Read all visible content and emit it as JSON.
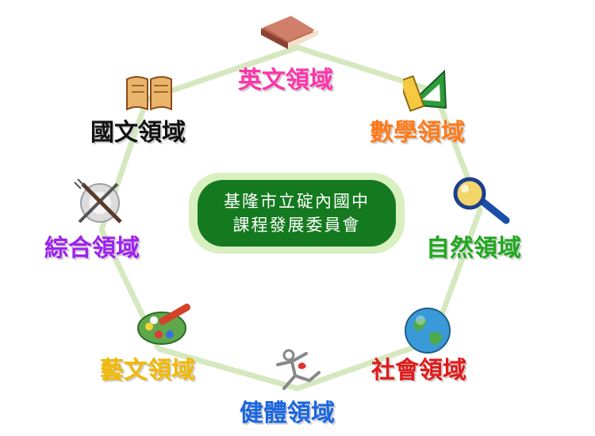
{
  "center": {
    "line1": "基隆市立碇內國中",
    "line2": "課程發展委員會"
  },
  "domains": [
    {
      "label": "英文領域",
      "color": "#ff33aa",
      "icon": "book-icon"
    },
    {
      "label": "數學領域",
      "color": "#ff7a1a",
      "icon": "ruler-triangle-icon"
    },
    {
      "label": "自然領域",
      "color": "#1ea81e",
      "icon": "magnifier-icon"
    },
    {
      "label": "社會領域",
      "color": "#e01a1a",
      "icon": "globe-icon"
    },
    {
      "label": "健體領域",
      "color": "#1a66e0",
      "icon": "runner-icon"
    },
    {
      "label": "藝文領域",
      "color": "#f2b800",
      "icon": "palette-icon"
    },
    {
      "label": "綜合領域",
      "color": "#a020f0",
      "icon": "utensils-icon"
    },
    {
      "label": "國文領域",
      "color": "#111111",
      "icon": "scroll-book-icon"
    }
  ]
}
